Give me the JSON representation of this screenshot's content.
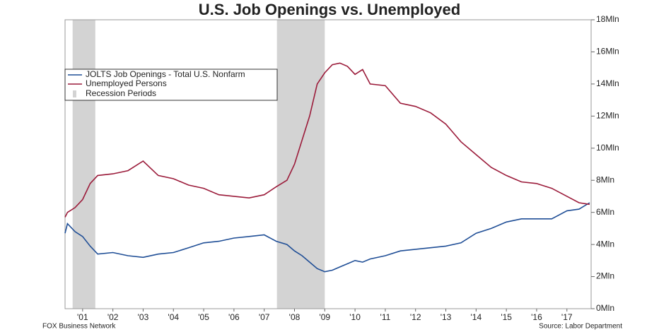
{
  "chart_data": {
    "type": "line",
    "title": "U.S. Job Openings vs. Unemployed",
    "footer_left": "FOX Business Network",
    "footer_right": "Source: Labor Department",
    "x": [
      2000.92,
      2001.0,
      2001.25,
      2001.5,
      2001.75,
      2002.0,
      2002.5,
      2003.0,
      2003.5,
      2004.0,
      2004.5,
      2005.0,
      2005.5,
      2006.0,
      2006.5,
      2007.0,
      2007.5,
      2007.9,
      2008.25,
      2008.5,
      2008.75,
      2009.0,
      2009.25,
      2009.5,
      2009.75,
      2010.0,
      2010.25,
      2010.5,
      2010.75,
      2011.0,
      2011.5,
      2012.0,
      2012.5,
      2013.0,
      2013.5,
      2014.0,
      2014.5,
      2015.0,
      2015.5,
      2016.0,
      2016.5,
      2017.0,
      2017.5,
      2017.9,
      2018.25
    ],
    "series": [
      {
        "name": "JOLTS Job Openings - Total U.S. Nonfarm",
        "color": "#1f4e96",
        "values": [
          4.7,
          5.3,
          4.8,
          4.5,
          3.9,
          3.4,
          3.5,
          3.3,
          3.2,
          3.4,
          3.5,
          3.8,
          4.1,
          4.2,
          4.4,
          4.5,
          4.6,
          4.2,
          4.0,
          3.6,
          3.3,
          2.9,
          2.5,
          2.3,
          2.4,
          2.6,
          2.8,
          3.0,
          2.9,
          3.1,
          3.3,
          3.6,
          3.7,
          3.8,
          3.9,
          4.1,
          4.7,
          5.0,
          5.4,
          5.6,
          5.6,
          5.6,
          6.1,
          6.2,
          6.6
        ]
      },
      {
        "name": "Unemployed Persons",
        "color": "#9b1b3a",
        "values": [
          5.7,
          6.0,
          6.3,
          6.8,
          7.8,
          8.3,
          8.4,
          8.6,
          9.2,
          8.3,
          8.1,
          7.7,
          7.5,
          7.1,
          7.0,
          6.9,
          7.1,
          7.6,
          8.0,
          9.0,
          10.5,
          12.0,
          14.0,
          14.7,
          15.2,
          15.3,
          15.1,
          14.6,
          14.9,
          14.0,
          13.9,
          12.8,
          12.6,
          12.2,
          11.5,
          10.4,
          9.6,
          8.8,
          8.3,
          7.9,
          7.8,
          7.5,
          7.0,
          6.6,
          6.5
        ]
      }
    ],
    "recession_label": "Recession Periods",
    "recession_color": "#d3d3d3",
    "recessions": [
      [
        2001.17,
        2001.92
      ],
      [
        2007.92,
        2009.5
      ]
    ],
    "xlim": [
      2000.92,
      2018.3
    ],
    "xticks": [
      {
        "value": 2001.5,
        "label": "'01"
      },
      {
        "value": 2002.5,
        "label": "'02"
      },
      {
        "value": 2003.5,
        "label": "'03"
      },
      {
        "value": 2004.5,
        "label": "'04"
      },
      {
        "value": 2005.5,
        "label": "'05"
      },
      {
        "value": 2006.5,
        "label": "'06"
      },
      {
        "value": 2007.5,
        "label": "'07"
      },
      {
        "value": 2008.5,
        "label": "'08"
      },
      {
        "value": 2009.5,
        "label": "'09"
      },
      {
        "value": 2010.5,
        "label": "'10"
      },
      {
        "value": 2011.5,
        "label": "'11"
      },
      {
        "value": 2012.5,
        "label": "'12"
      },
      {
        "value": 2013.5,
        "label": "'13"
      },
      {
        "value": 2014.5,
        "label": "'14"
      },
      {
        "value": 2015.5,
        "label": "'15"
      },
      {
        "value": 2016.5,
        "label": "'16"
      },
      {
        "value": 2017.5,
        "label": "'17"
      }
    ],
    "ylim": [
      0,
      18
    ],
    "yticks": [
      {
        "value": 0,
        "label": "0Mln"
      },
      {
        "value": 2,
        "label": "2Mln"
      },
      {
        "value": 4,
        "label": "4Mln"
      },
      {
        "value": 6,
        "label": "6Mln"
      },
      {
        "value": 8,
        "label": "8Mln"
      },
      {
        "value": 10,
        "label": "10Mln"
      },
      {
        "value": 12,
        "label": "12Mln"
      },
      {
        "value": 14,
        "label": "14Mln"
      },
      {
        "value": 16,
        "label": "16Mln"
      },
      {
        "value": 18,
        "label": "18Mln"
      }
    ],
    "legend": "upper left"
  }
}
